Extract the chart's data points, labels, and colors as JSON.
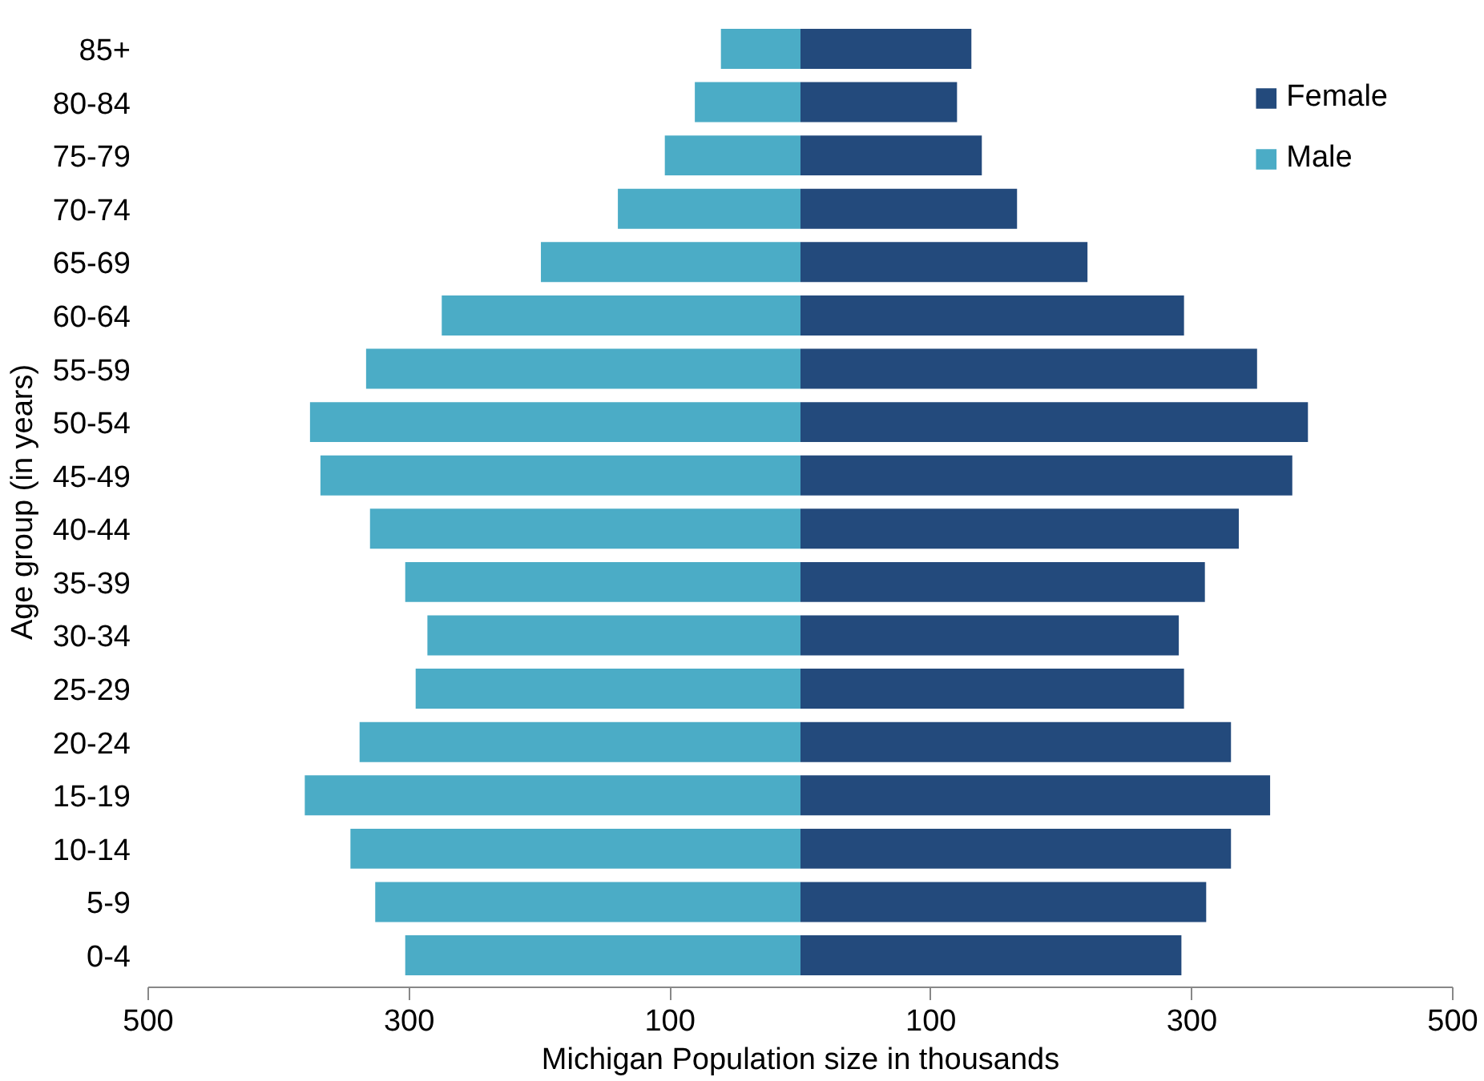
{
  "chart_data": {
    "type": "bar",
    "orientation": "horizontal",
    "xlabel": "Michigan Population size in thousands",
    "ylabel": "Age group (in years)",
    "categories": [
      "85+",
      "80-84",
      "75-79",
      "70-74",
      "65-69",
      "60-64",
      "55-59",
      "50-54",
      "45-49",
      "40-44",
      "35-39",
      "30-34",
      "25-29",
      "20-24",
      "15-19",
      "10-14",
      "5-9",
      "0-4"
    ],
    "series": [
      {
        "name": "Female",
        "color": "#234a7c",
        "values": [
          131,
          120,
          139,
          166,
          220,
          294,
          350,
          389,
          377,
          336,
          310,
          290,
          294,
          330,
          360,
          330,
          311,
          292
        ]
      },
      {
        "name": "Male",
        "color": "#4bacc6",
        "values": [
          -61,
          -81,
          -104,
          -140,
          -199,
          -275,
          -333,
          -376,
          -368,
          -330,
          -303,
          -286,
          -295,
          -338,
          -380,
          -345,
          -326,
          -303
        ]
      }
    ],
    "xlim": [
      -500,
      500
    ],
    "xticks": [
      {
        "value": -500,
        "label": "500"
      },
      {
        "value": -300,
        "label": "300"
      },
      {
        "value": -100,
        "label": "100"
      },
      {
        "value": 100,
        "label": "100"
      },
      {
        "value": 300,
        "label": "300"
      },
      {
        "value": 500,
        "label": "500"
      }
    ],
    "stacked": true,
    "grid": false,
    "legend": "top right"
  }
}
